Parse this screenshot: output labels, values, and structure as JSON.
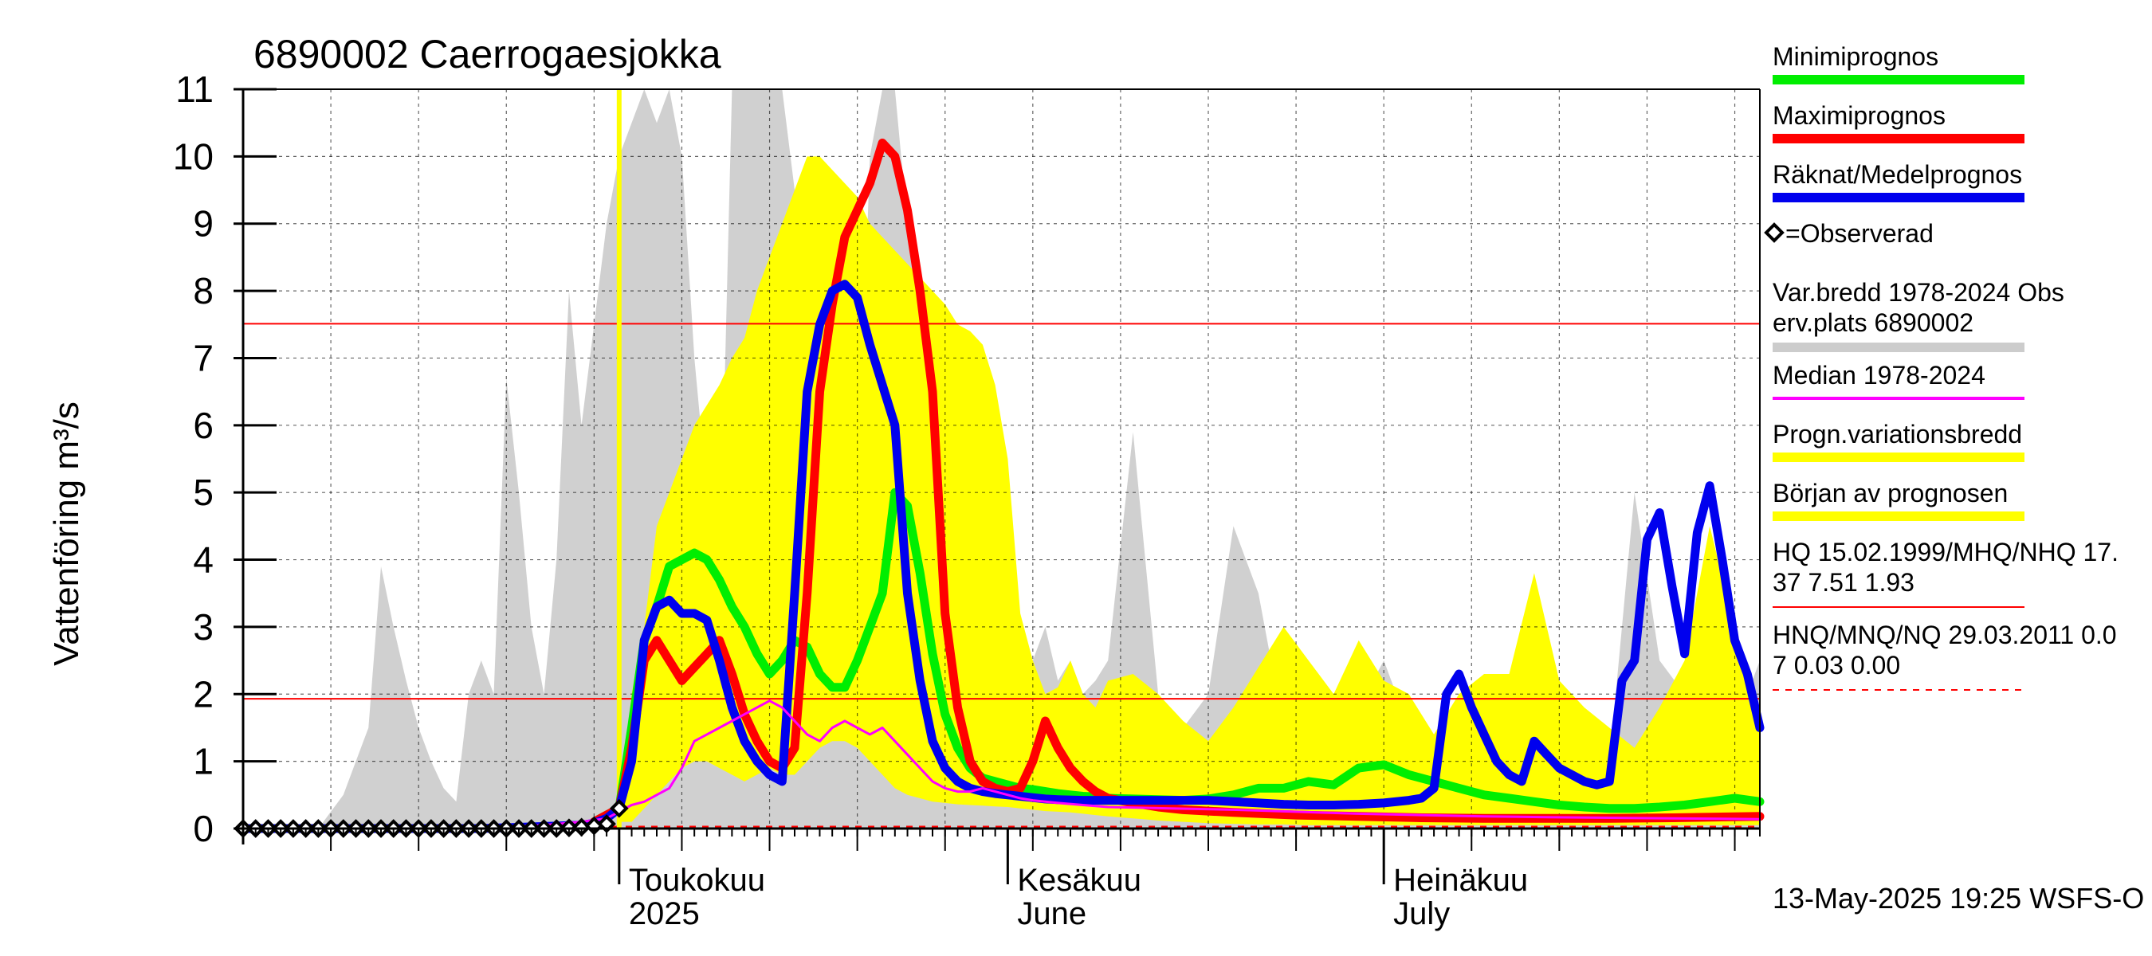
{
  "chart_data": {
    "type": "line",
    "title": "6890002 Caerrogaesjokka",
    "ylabel": "Vattenföring m³/s",
    "xlabel": "",
    "ylim": [
      0,
      11
    ],
    "yticks": [
      0,
      1,
      2,
      3,
      4,
      5,
      6,
      7,
      8,
      9,
      10,
      11
    ],
    "x_unit": "day of year",
    "xlim": [
      91,
      212
    ],
    "month_labels": [
      {
        "day": 121,
        "line1": "Toukokuu",
        "line2": "2025"
      },
      {
        "day": 152,
        "line1": "Kesäkuu",
        "line2": "June"
      },
      {
        "day": 182,
        "line1": "Heinäkuu",
        "line2": "July"
      }
    ],
    "forecast_start_day": 121,
    "reference_lines": [
      {
        "label": "HQ/MHQ/NHQ",
        "value": 7.51,
        "style": "solid",
        "color": "#ff0000"
      },
      {
        "label": "HQ/MHQ/NHQ",
        "value": 1.93,
        "style": "solid",
        "color": "#ff0000"
      },
      {
        "label": "HNQ/MNQ/NQ",
        "value": 0.03,
        "style": "dashed",
        "color": "#ff0000"
      }
    ],
    "series": [
      {
        "name": "Minimiprognos",
        "color": "#00ee00",
        "x": [
          119,
          120,
          121,
          122,
          123,
          124,
          125,
          126,
          127,
          128,
          129,
          130,
          131,
          132,
          133,
          134,
          135,
          136,
          137,
          138,
          139,
          140,
          141,
          142,
          143,
          144,
          145,
          146,
          147,
          148,
          149,
          150,
          151,
          152,
          153,
          154,
          155,
          156,
          157,
          158,
          159,
          160,
          162,
          164,
          166,
          168,
          170,
          172,
          174,
          176,
          178,
          180,
          182,
          184,
          186,
          188,
          190,
          192,
          194,
          196,
          198,
          200,
          202,
          204,
          206,
          208,
          210,
          212
        ],
        "y": [
          0.1,
          0.2,
          0.3,
          1.5,
          2.8,
          3.3,
          3.9,
          4.0,
          4.1,
          4.0,
          3.7,
          3.3,
          3.0,
          2.6,
          2.3,
          2.5,
          2.8,
          2.7,
          2.3,
          2.1,
          2.1,
          2.5,
          3.0,
          3.5,
          5.0,
          4.8,
          3.8,
          2.6,
          1.7,
          1.2,
          0.9,
          0.75,
          0.7,
          0.65,
          0.6,
          0.58,
          0.55,
          0.52,
          0.5,
          0.48,
          0.47,
          0.45,
          0.44,
          0.43,
          0.42,
          0.44,
          0.5,
          0.6,
          0.6,
          0.7,
          0.65,
          0.9,
          0.95,
          0.8,
          0.7,
          0.6,
          0.5,
          0.45,
          0.4,
          0.35,
          0.32,
          0.3,
          0.3,
          0.32,
          0.35,
          0.4,
          0.45,
          0.4
        ]
      },
      {
        "name": "Maximiprognos",
        "color": "#ff0000",
        "x": [
          119,
          120,
          121,
          122,
          123,
          124,
          125,
          126,
          127,
          128,
          129,
          130,
          131,
          132,
          133,
          134,
          135,
          136,
          137,
          138,
          139,
          140,
          141,
          142,
          143,
          144,
          145,
          146,
          147,
          148,
          149,
          150,
          151,
          152,
          153,
          154,
          155,
          156,
          157,
          158,
          159,
          160,
          162,
          164,
          166,
          168,
          170,
          175,
          180,
          185,
          190,
          195,
          200,
          205,
          212
        ],
        "y": [
          0.1,
          0.2,
          0.3,
          1.2,
          2.5,
          2.8,
          2.5,
          2.2,
          2.4,
          2.6,
          2.8,
          2.3,
          1.7,
          1.3,
          1.0,
          0.9,
          1.2,
          3.5,
          6.5,
          7.8,
          8.8,
          9.2,
          9.6,
          10.2,
          10.0,
          9.2,
          8.0,
          6.5,
          3.2,
          1.8,
          1.0,
          0.7,
          0.6,
          0.55,
          0.6,
          1.0,
          1.6,
          1.2,
          0.9,
          0.7,
          0.55,
          0.45,
          0.38,
          0.32,
          0.28,
          0.26,
          0.24,
          0.2,
          0.18,
          0.16,
          0.15,
          0.15,
          0.15,
          0.16,
          0.18
        ]
      },
      {
        "name": "Räknat/Medelprognos",
        "color": "#0000ee",
        "x": [
          91,
          100,
          110,
          118,
          119,
          120,
          121,
          122,
          123,
          124,
          125,
          126,
          127,
          128,
          129,
          130,
          131,
          132,
          133,
          134,
          135,
          136,
          137,
          138,
          139,
          140,
          141,
          142,
          143,
          144,
          145,
          146,
          147,
          148,
          149,
          150,
          151,
          152,
          153,
          154,
          155,
          156,
          158,
          160,
          162,
          164,
          166,
          168,
          170,
          172,
          174,
          176,
          178,
          180,
          182,
          184,
          185,
          186,
          187,
          188,
          189,
          190,
          191,
          192,
          193,
          194,
          195,
          196,
          197,
          198,
          199,
          200,
          201,
          202,
          203,
          204,
          205,
          206,
          207,
          208,
          209,
          210,
          211,
          212
        ],
        "y": [
          0,
          0,
          0,
          0.05,
          0.08,
          0.15,
          0.3,
          1.0,
          2.8,
          3.3,
          3.4,
          3.2,
          3.2,
          3.1,
          2.5,
          1.8,
          1.3,
          1.0,
          0.8,
          0.7,
          3.5,
          6.5,
          7.5,
          8.0,
          8.1,
          7.9,
          7.2,
          6.6,
          6.0,
          3.5,
          2.2,
          1.3,
          0.9,
          0.7,
          0.6,
          0.55,
          0.52,
          0.5,
          0.48,
          0.46,
          0.44,
          0.43,
          0.42,
          0.42,
          0.42,
          0.42,
          0.42,
          0.42,
          0.4,
          0.38,
          0.36,
          0.35,
          0.35,
          0.36,
          0.38,
          0.42,
          0.45,
          0.6,
          2.0,
          2.3,
          1.8,
          1.4,
          1.0,
          0.8,
          0.7,
          1.3,
          1.1,
          0.9,
          0.8,
          0.7,
          0.65,
          0.7,
          2.2,
          2.5,
          4.3,
          4.7,
          3.6,
          2.6,
          4.4,
          5.1,
          4.0,
          2.8,
          2.3,
          1.5
        ]
      },
      {
        "name": "Median 1978-2024",
        "color": "#ff00ff",
        "x": [
          91,
          100,
          110,
          115,
          118,
          120,
          121,
          122,
          123,
          124,
          125,
          126,
          127,
          128,
          129,
          130,
          131,
          132,
          133,
          134,
          135,
          136,
          137,
          138,
          139,
          140,
          141,
          142,
          143,
          144,
          145,
          146,
          147,
          148,
          149,
          150,
          151,
          152,
          153,
          154,
          155,
          156,
          158,
          160,
          165,
          170,
          175,
          180,
          185,
          190,
          195,
          200,
          205,
          212
        ],
        "y": [
          0,
          0,
          0.01,
          0.05,
          0.1,
          0.15,
          0.25,
          0.35,
          0.4,
          0.5,
          0.6,
          0.9,
          1.3,
          1.4,
          1.5,
          1.6,
          1.7,
          1.8,
          1.9,
          1.8,
          1.6,
          1.4,
          1.3,
          1.5,
          1.6,
          1.5,
          1.4,
          1.5,
          1.3,
          1.1,
          0.9,
          0.7,
          0.6,
          0.55,
          0.55,
          0.6,
          0.55,
          0.5,
          0.45,
          0.42,
          0.4,
          0.38,
          0.35,
          0.32,
          0.3,
          0.28,
          0.25,
          0.22,
          0.2,
          0.18,
          0.17,
          0.16,
          0.15,
          0.14
        ]
      }
    ],
    "bands": [
      {
        "name": "Var.bredd 1978-2024 Obs erv.plats 6890002",
        "color": "#d0d0d0",
        "x": [
          91,
          97,
          99,
          100,
          101,
          102,
          103,
          104,
          105,
          106,
          107,
          108,
          109,
          110,
          111,
          112,
          113,
          114,
          115,
          116,
          117,
          118,
          119,
          120,
          121,
          122,
          123,
          124,
          125,
          126,
          127,
          128,
          129,
          130,
          131,
          132,
          133,
          134,
          135,
          136,
          137,
          138,
          139,
          140,
          141,
          142,
          143,
          144,
          145,
          146,
          147,
          148,
          149,
          150,
          151,
          152,
          153,
          154,
          155,
          156,
          157,
          158,
          159,
          160,
          162,
          164,
          166,
          168,
          170,
          172,
          174,
          176,
          178,
          180,
          182,
          184,
          186,
          188,
          190,
          192,
          194,
          196,
          198,
          200,
          202,
          204,
          206,
          208,
          210,
          212
        ],
        "upper": [
          0,
          0,
          0.5,
          1,
          1.5,
          3.9,
          3.0,
          2.2,
          1.5,
          1.0,
          0.6,
          0.4,
          2.0,
          2.5,
          2.0,
          6.7,
          5.0,
          3.0,
          2.0,
          4.0,
          8.0,
          6.0,
          7.5,
          9.0,
          10.0,
          10.5,
          11.0,
          10.5,
          11.0,
          10.0,
          7.0,
          5.0,
          3.5,
          11.0,
          11.0,
          11.0,
          11.0,
          11.0,
          9.5,
          8.0,
          7.5,
          6.5,
          5.0,
          4.5,
          10.0,
          11.0,
          11.0,
          9.0,
          7.5,
          6.0,
          5.5,
          4.5,
          4.0,
          3.5,
          3.0,
          3.2,
          2.8,
          2.5,
          3.0,
          2.2,
          2.5,
          2.0,
          2.2,
          2.5,
          5.9,
          2.0,
          1.5,
          2.0,
          4.5,
          3.5,
          1.5,
          1.5,
          1.5,
          1.8,
          2.5,
          1.5,
          1.2,
          1.3,
          1.5,
          1.5,
          1.0,
          1.0,
          0.8,
          1.0,
          5.0,
          2.5,
          2.0,
          1.5,
          1.5,
          2.5
        ],
        "lower": [
          0,
          0,
          0,
          0,
          0,
          0,
          0,
          0,
          0,
          0,
          0,
          0,
          0,
          0,
          0,
          0,
          0,
          0,
          0,
          0,
          0,
          0,
          0,
          0,
          0,
          0,
          0,
          0,
          0,
          0,
          0,
          0,
          0,
          0,
          0,
          0,
          0,
          0,
          0,
          0,
          0,
          0,
          0,
          0,
          0,
          0,
          0,
          0,
          0,
          0,
          0,
          0,
          0,
          0,
          0,
          0,
          0,
          0,
          0,
          0,
          0,
          0,
          0,
          0,
          0,
          0,
          0,
          0,
          0,
          0,
          0,
          0,
          0,
          0,
          0,
          0,
          0,
          0,
          0,
          0,
          0,
          0,
          0,
          0,
          0,
          0,
          0,
          0,
          0,
          0
        ]
      },
      {
        "name": "Progn.variationsbredd",
        "color": "#ffff00",
        "x": [
          121,
          122,
          123,
          124,
          125,
          126,
          127,
          128,
          129,
          130,
          131,
          132,
          133,
          134,
          135,
          136,
          137,
          138,
          139,
          140,
          141,
          142,
          143,
          144,
          145,
          146,
          147,
          148,
          149,
          150,
          151,
          152,
          153,
          154,
          155,
          156,
          157,
          158,
          159,
          160,
          162,
          164,
          166,
          168,
          170,
          172,
          174,
          176,
          178,
          180,
          182,
          184,
          186,
          188,
          190,
          192,
          194,
          196,
          198,
          200,
          202,
          204,
          206,
          208,
          210,
          212
        ],
        "upper": [
          0.3,
          2.0,
          3.0,
          4.5,
          5.0,
          5.5,
          6.0,
          6.3,
          6.6,
          7.0,
          7.3,
          8.0,
          8.5,
          9.0,
          9.5,
          10.0,
          10.0,
          9.8,
          9.6,
          9.4,
          9.0,
          8.8,
          8.6,
          8.4,
          8.2,
          8.0,
          7.8,
          7.5,
          7.4,
          7.2,
          6.6,
          5.5,
          3.2,
          2.5,
          2.0,
          2.1,
          2.5,
          2.0,
          1.8,
          2.2,
          2.3,
          2.0,
          1.6,
          1.3,
          1.8,
          2.4,
          3.0,
          2.5,
          2.0,
          2.8,
          2.2,
          2.0,
          1.4,
          2.0,
          2.3,
          2.3,
          3.8,
          2.2,
          1.8,
          1.5,
          1.2,
          1.8,
          2.5,
          4.5,
          3.0,
          1.5
        ],
        "lower": [
          0.1,
          0.1,
          0.3,
          0.5,
          0.7,
          0.9,
          1.0,
          1.0,
          0.9,
          0.8,
          0.7,
          0.8,
          0.9,
          0.8,
          0.8,
          1.0,
          1.2,
          1.3,
          1.3,
          1.2,
          1.0,
          0.8,
          0.6,
          0.5,
          0.45,
          0.4,
          0.38,
          0.36,
          0.35,
          0.34,
          0.33,
          0.32,
          0.3,
          0.28,
          0.26,
          0.25,
          0.24,
          0.22,
          0.2,
          0.18,
          0.15,
          0.12,
          0.1,
          0.08,
          0.07,
          0.06,
          0.06,
          0.05,
          0.05,
          0.05,
          0.05,
          0.05,
          0.05,
          0.05,
          0.05,
          0.05,
          0.05,
          0.05,
          0.05,
          0.05,
          0.05,
          0.05,
          0.05,
          0.05,
          0.05,
          0.05
        ]
      }
    ],
    "observed": {
      "name": "=Observerad",
      "x": [
        91,
        92,
        93,
        94,
        95,
        96,
        97,
        98,
        99,
        100,
        101,
        102,
        103,
        104,
        105,
        106,
        107,
        108,
        109,
        110,
        111,
        112,
        113,
        114,
        115,
        116,
        117,
        118,
        119,
        120,
        121
      ],
      "y": [
        0,
        0,
        0,
        0,
        0,
        0,
        0,
        0,
        0,
        0,
        0,
        0,
        0,
        0,
        0,
        0,
        0,
        0,
        0,
        0,
        0,
        0,
        0,
        0,
        0,
        0,
        0.01,
        0.02,
        0.04,
        0.07,
        0.3
      ]
    },
    "legend": {
      "placement": "right",
      "items": [
        {
          "label": "Minimiprognos",
          "color": "#00ee00"
        },
        {
          "label": "Maximiprognos",
          "color": "#ff0000"
        },
        {
          "label": "Räknat/Medelprognos",
          "color": "#0000ee"
        },
        {
          "label": "=Observerad",
          "color": "#000000"
        },
        {
          "label": "Var.bredd 1978-2024   Obs",
          "label2": "erv.plats 6890002",
          "color": "#cccccc"
        },
        {
          "label": "Median 1978-2024",
          "color": "#ff00ff"
        },
        {
          "label": "Progn.variationsbredd",
          "color": "#ffff00"
        },
        {
          "label": "Början av prognosen",
          "color": "#ffff00"
        },
        {
          "label": "HQ 15.02.1999/MHQ/NHQ 17.",
          "label2": "37 7.51 1.93",
          "color": "#ff0000"
        },
        {
          "label": "HNQ/MNQ/NQ 29.03.2011 0.0",
          "label2": "7 0.03 0.00",
          "color": "#ff0000"
        }
      ]
    },
    "footer": "13-May-2025 19:25 WSFS-O",
    "grid": true
  }
}
